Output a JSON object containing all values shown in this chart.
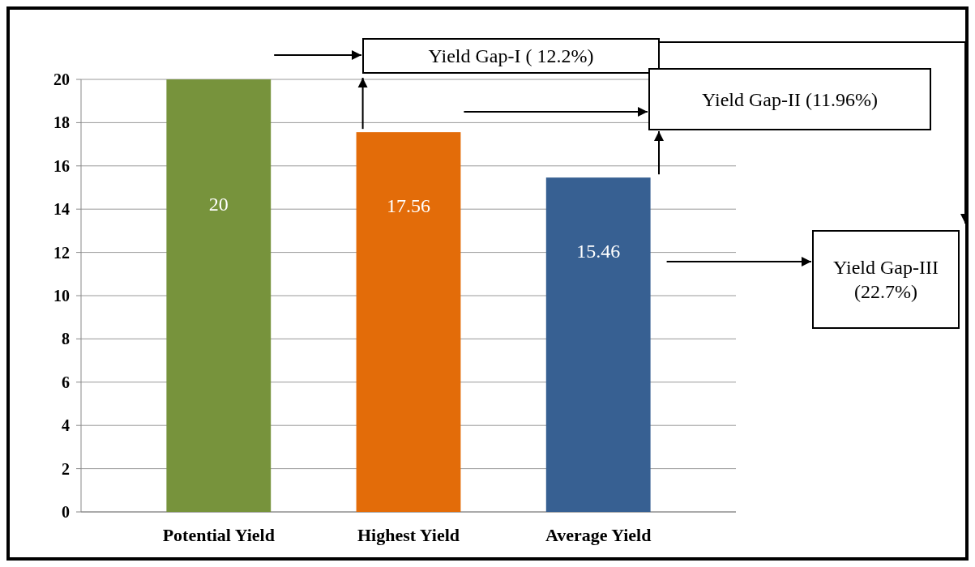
{
  "chart_data": {
    "type": "bar",
    "categories": [
      "Potential Yield",
      "Highest Yield",
      "Average Yield"
    ],
    "values": [
      20,
      17.56,
      15.46
    ],
    "colors": [
      "#77933c",
      "#e36c09",
      "#376092"
    ],
    "ylim": [
      0,
      20
    ],
    "yticks": [
      0,
      2,
      4,
      6,
      8,
      10,
      12,
      14,
      16,
      18,
      20
    ],
    "grid": "y",
    "data_labels": true,
    "annotations": [
      "Yield Gap-I ( 12.2%)",
      "Yield Gap-II (11.96%)",
      "Yield Gap-III (22.7%)"
    ]
  }
}
